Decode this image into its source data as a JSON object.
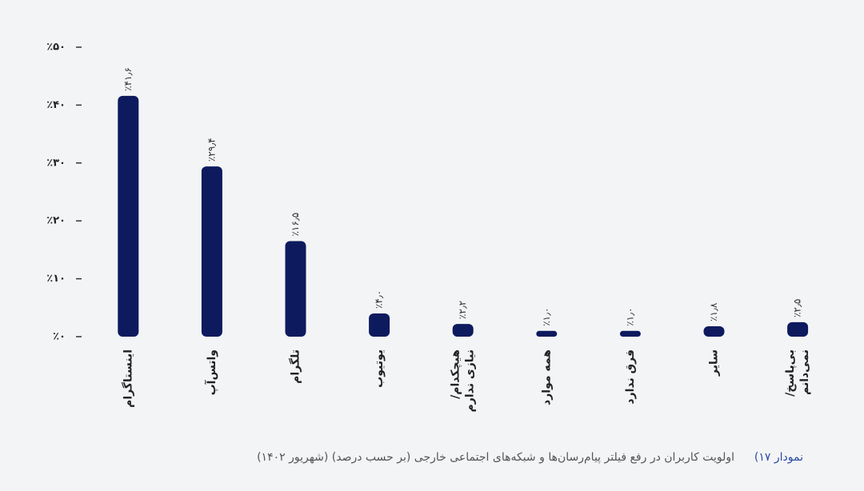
{
  "chart_data": {
    "type": "bar",
    "figure_label": "نمودار ۱۷)",
    "title": "اولویت کاربران در رفع فیلتر پیام‌رسان‌ها و شبکه‌های اجتماعی خارجی (بر حسب درصد) (شهریور ۱۴۰۲)",
    "categories": [
      "اینستاگرام",
      "واتس‌آپ",
      "تلگرام",
      "یوتیوب",
      [
        "هیچکدام/",
        "نیازی ندارم"
      ],
      "همه موارد",
      "فرق ندارد",
      "سایر",
      [
        "بی‌پاسخ/",
        "نمی‌دانم"
      ]
    ],
    "values": [
      41.6,
      29.4,
      16.5,
      4.0,
      2.2,
      1.0,
      1.0,
      1.8,
      2.5
    ],
    "value_labels": [
      "٪۴۱٫۶",
      "٪۲۹٫۴",
      "٪۱۶٫۵",
      "٪۴٫۰",
      "٪۲٫۲",
      "٪۱٫۰",
      "٪۱٫۰",
      "٪۱٫۸",
      "٪۲٫۵"
    ],
    "color": "#0d1a5e",
    "ylim": [
      0,
      50
    ],
    "yticks": [
      {
        "value": 0,
        "label": "٪۰"
      },
      {
        "value": 10,
        "label": "٪۱۰"
      },
      {
        "value": 20,
        "label": "٪۲۰"
      },
      {
        "value": 30,
        "label": "٪۳۰"
      },
      {
        "value": 40,
        "label": "٪۴۰"
      },
      {
        "value": 50,
        "label": "٪۵۰"
      }
    ],
    "grid": false
  }
}
